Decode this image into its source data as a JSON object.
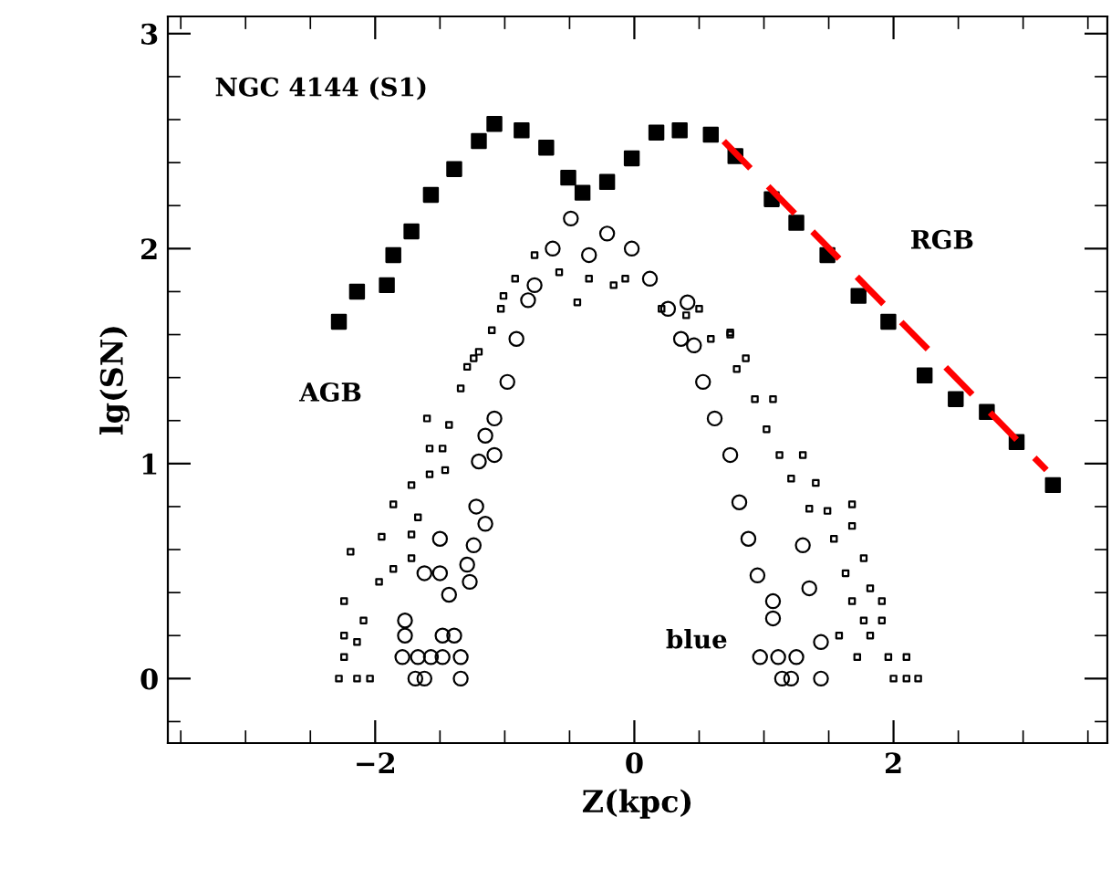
{
  "chart_data": {
    "type": "scatter",
    "xlabel": "Z(kpc)",
    "ylabel": "lg(SN)",
    "xlim": [
      -3.6,
      3.65
    ],
    "ylim": [
      -0.3,
      3.08
    ],
    "xticks": [
      -2,
      0,
      2
    ],
    "yticks": [
      0,
      1,
      2,
      3
    ],
    "grid": false,
    "legend": false,
    "annotations": [
      "NGC 4144 (S1)",
      "RGB",
      "AGB",
      "blue"
    ],
    "series": [
      {
        "marker": "square",
        "color": "#000000",
        "x": [
          -2.28,
          -2.14,
          -1.91,
          -1.86,
          -1.72,
          -1.57,
          -1.39,
          -1.2,
          -1.08,
          -0.87,
          -0.68,
          -0.51,
          -0.4,
          -0.21,
          -0.02,
          0.17,
          0.35,
          0.59,
          0.78,
          1.06,
          1.25,
          1.49,
          1.73,
          1.96,
          2.24,
          2.48,
          2.72,
          2.95,
          3.23
        ],
        "values": [
          1.66,
          1.8,
          1.83,
          1.97,
          2.08,
          2.25,
          2.37,
          2.5,
          2.58,
          2.55,
          2.47,
          2.33,
          2.26,
          2.31,
          2.42,
          2.54,
          2.55,
          2.53,
          2.43,
          2.23,
          2.12,
          1.97,
          1.78,
          1.66,
          1.41,
          1.3,
          1.24,
          1.1,
          0.9
        ]
      },
      {
        "marker": "square",
        "color": "#000000",
        "x": [
          -2.28,
          -2.14,
          -2.04,
          -2.24,
          -2.14,
          -2.24,
          -2.09,
          -2.24,
          -1.97,
          -2.19,
          -1.86,
          -1.72,
          -1.95,
          -1.72,
          -1.86,
          -1.67,
          -1.72,
          -1.58,
          -1.58,
          -1.46,
          -1.48,
          -1.6,
          -1.43,
          -1.34,
          -1.24,
          -1.29,
          -1.2,
          -1.1,
          -1.03,
          -1.01,
          -0.92,
          -0.77,
          -0.58,
          -0.44,
          -0.35,
          -0.16,
          -0.07,
          0.21,
          0.4,
          0.5,
          0.59,
          0.74,
          0.74,
          0.86,
          0.79,
          0.93,
          1.07,
          1.02,
          1.12,
          1.3,
          1.21,
          1.4,
          1.35,
          1.49,
          1.68,
          1.68,
          1.54,
          1.77,
          1.63,
          1.82,
          1.68,
          1.91,
          1.77,
          1.91,
          1.58,
          1.82,
          1.72,
          1.96,
          2.1,
          2.0,
          2.1,
          2.19
        ],
        "values": [
          0,
          0,
          0,
          0.1,
          0.17,
          0.2,
          0.27,
          0.36,
          0.45,
          0.59,
          0.51,
          0.56,
          0.66,
          0.67,
          0.81,
          0.75,
          0.9,
          0.95,
          1.07,
          0.97,
          1.07,
          1.21,
          1.18,
          1.35,
          1.49,
          1.45,
          1.52,
          1.62,
          1.72,
          1.78,
          1.86,
          1.97,
          1.89,
          1.75,
          1.86,
          1.83,
          1.86,
          1.72,
          1.69,
          1.72,
          1.58,
          1.61,
          1.6,
          1.49,
          1.44,
          1.3,
          1.3,
          1.16,
          1.04,
          1.04,
          0.93,
          0.91,
          0.79,
          0.78,
          0.81,
          0.71,
          0.65,
          0.56,
          0.49,
          0.42,
          0.36,
          0.36,
          0.27,
          0.27,
          0.2,
          0.2,
          0.1,
          0.1,
          0.1,
          0,
          0,
          0
        ]
      },
      {
        "marker": "circle",
        "color": "#000000",
        "x": [
          -1.69,
          -1.62,
          -1.34,
          -1.79,
          -1.67,
          -1.57,
          -1.48,
          -1.34,
          -1.77,
          -1.39,
          -1.48,
          -1.77,
          -1.43,
          -1.62,
          -1.5,
          -1.27,
          -1.29,
          -1.24,
          -1.5,
          -1.15,
          -1.22,
          -1.2,
          -1.08,
          -1.15,
          -1.08,
          -0.98,
          -0.91,
          -0.82,
          -0.77,
          -0.63,
          -0.49,
          -0.35,
          -0.21,
          -0.02,
          0.12,
          0.26,
          0.36,
          0.41,
          0.46,
          0.53,
          0.62,
          0.74,
          0.81,
          0.88,
          0.95,
          1.07,
          1.3,
          1.35,
          1.07,
          0.97,
          1.11,
          1.25,
          1.14,
          1.21,
          1.44,
          1.44
        ],
        "values": [
          0,
          0,
          0,
          0.1,
          0.1,
          0.1,
          0.1,
          0.1,
          0.2,
          0.2,
          0.2,
          0.27,
          0.39,
          0.49,
          0.49,
          0.45,
          0.53,
          0.62,
          0.65,
          0.72,
          0.8,
          1.01,
          1.04,
          1.13,
          1.21,
          1.38,
          1.58,
          1.76,
          1.83,
          2.0,
          2.14,
          1.97,
          2.07,
          2.0,
          1.86,
          1.72,
          1.58,
          1.75,
          1.55,
          1.38,
          1.21,
          1.04,
          0.82,
          0.65,
          0.48,
          0.36,
          0.62,
          0.42,
          0.28,
          0.1,
          0.1,
          0.1,
          0,
          0,
          0,
          0.17
        ]
      },
      {
        "type": "line",
        "color": "#ff0000",
        "line_style": "dashed",
        "marker": "none",
        "x": [
          0.69,
          3.18
        ],
        "values": [
          2.5,
          0.97
        ]
      }
    ]
  }
}
